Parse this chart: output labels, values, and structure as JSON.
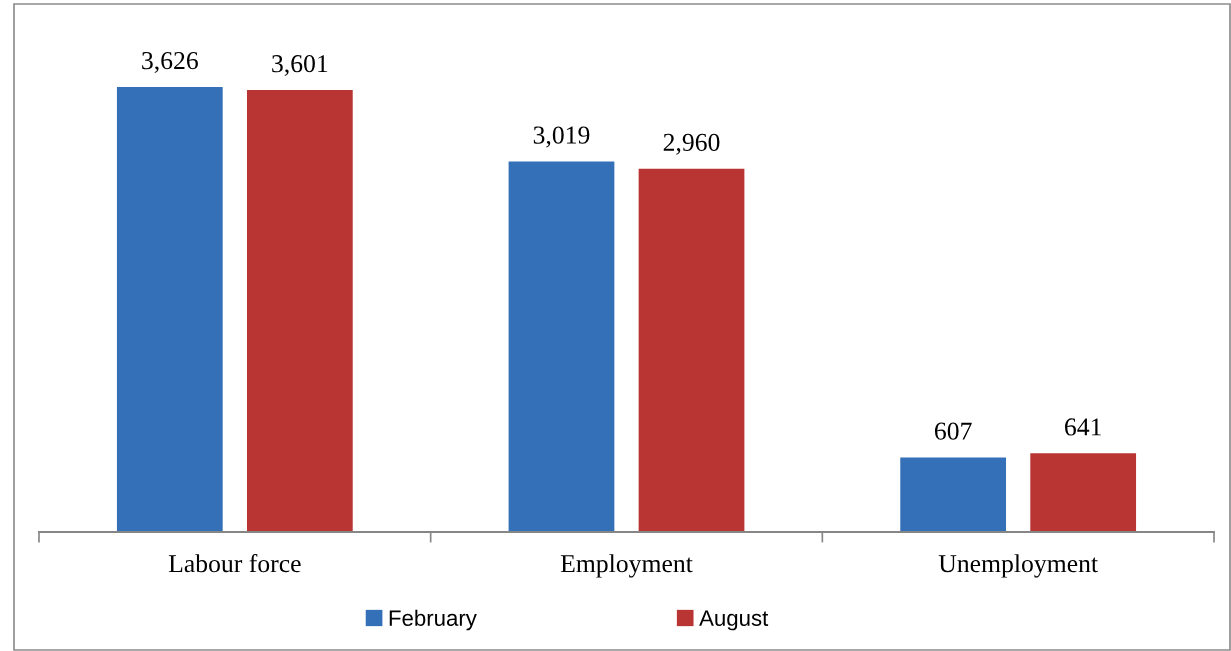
{
  "chart_data": {
    "type": "bar",
    "categories": [
      "Labour force",
      "Employment",
      "Unemployment"
    ],
    "series": [
      {
        "name": "February",
        "color": "#3470b8",
        "values": [
          3626,
          3019,
          607
        ],
        "value_labels": [
          "3,626",
          "3,019",
          "607"
        ]
      },
      {
        "name": "August",
        "color": "#b83533",
        "values": [
          3601,
          2960,
          641
        ],
        "value_labels": [
          "3,601",
          "2,960",
          "641"
        ]
      }
    ],
    "legend": "bottom"
  }
}
